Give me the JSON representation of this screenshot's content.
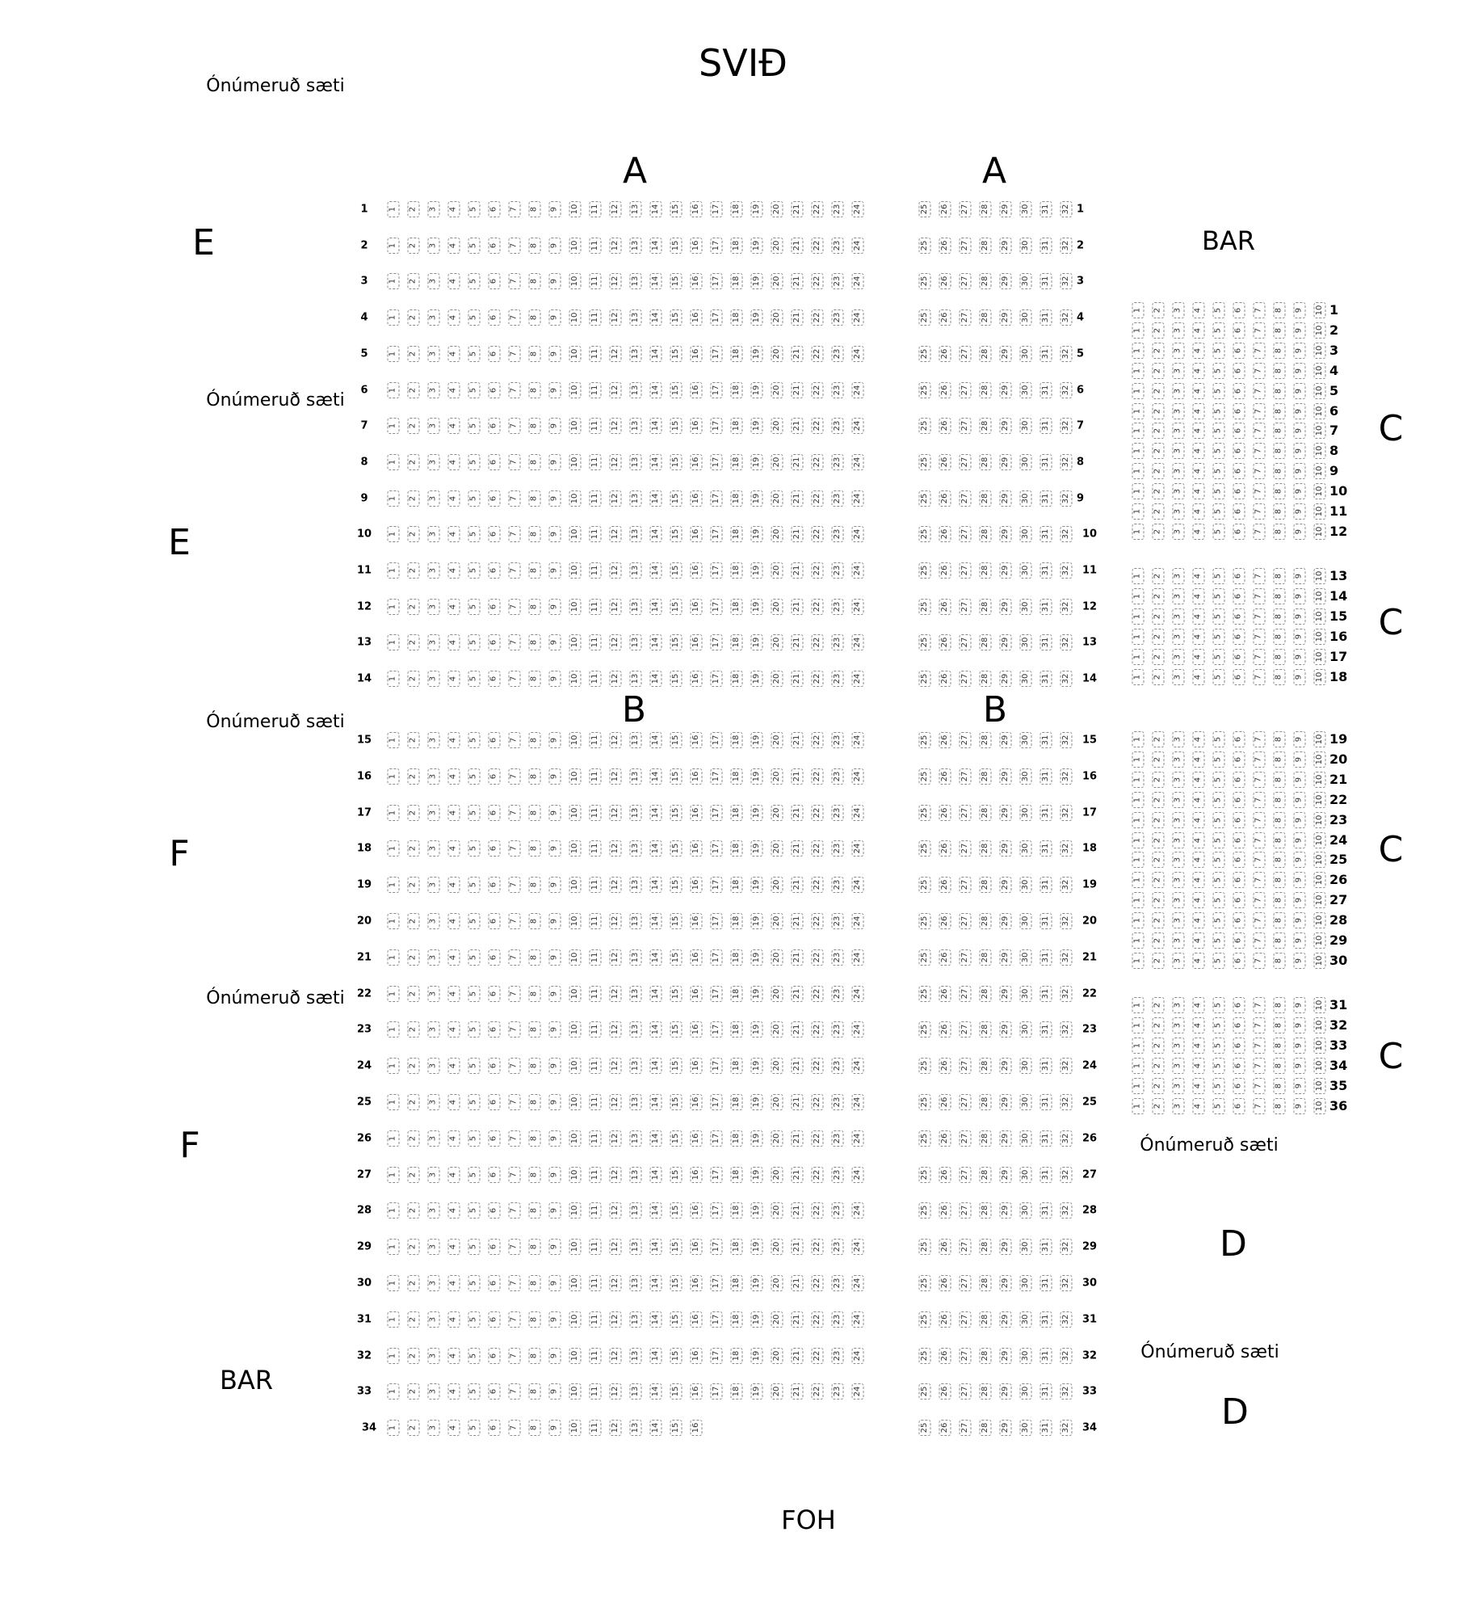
{
  "labels": {
    "stage": "SVIÐ",
    "foh": "FOH",
    "unnumbered": "Ónúmeruð sæti",
    "bar": "BAR",
    "section_a": "A",
    "section_b": "B",
    "section_c": "C",
    "section_d": "D",
    "section_e": "E",
    "section_f": "F"
  },
  "main_rows": {
    "count": 34,
    "left_seats_default": 24,
    "left_seats_exceptions": {
      "34": 16
    },
    "right_seat_first": 25,
    "right_seat_last": 32,
    "section_a_rows": [
      1,
      14
    ],
    "section_b_rows": [
      15,
      34
    ]
  },
  "c_rows": {
    "count": 36,
    "seats_per_row": 10,
    "blocks": [
      [
        1,
        12
      ],
      [
        13,
        18
      ],
      [
        19,
        30
      ],
      [
        31,
        36
      ]
    ]
  },
  "colors": {
    "seat_border": "#8a8a8a",
    "text": "#000000"
  }
}
